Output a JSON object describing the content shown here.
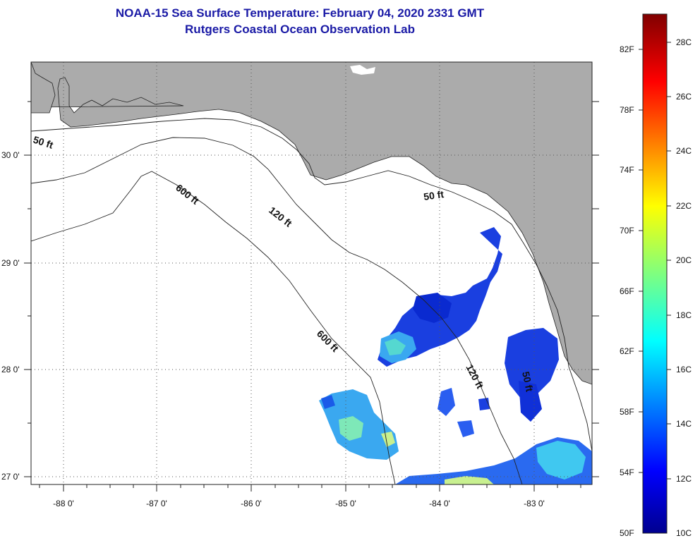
{
  "title": {
    "line1": "NOAA-15 Sea Surface Temperature:  February 04, 2020 2331 GMT",
    "line2": "Rutgers Coastal Ocean Observation Lab"
  },
  "map": {
    "lon_labels": [
      "-88 0'",
      "-87 0'",
      "-86 0'",
      "-85 0'",
      "-84 0'",
      "-83 0'"
    ],
    "lat_labels": [
      "30 0'",
      "29 0'",
      "28 0'",
      "27 0'"
    ],
    "contour_labels": {
      "nw_50": "50 ft",
      "e_50": "50 ft",
      "se_50": "50 ft",
      "c_120": "120 ft",
      "s_120": "120 ft",
      "n_600": "600 ft",
      "s_600": "600 ft"
    },
    "colors": {
      "land": "#ababab",
      "ocean": "#ffffff",
      "coast": "#000000"
    }
  },
  "colorbar": {
    "fahrenheit": [
      "82F",
      "78F",
      "74F",
      "70F",
      "66F",
      "62F",
      "58F",
      "54F",
      "50F"
    ],
    "celsius": [
      "28C",
      "26C",
      "24C",
      "22C",
      "20C",
      "18C",
      "16C",
      "14C",
      "12C",
      "10C"
    ],
    "colormap": "jet",
    "min_c": 10,
    "max_c": 29
  }
}
